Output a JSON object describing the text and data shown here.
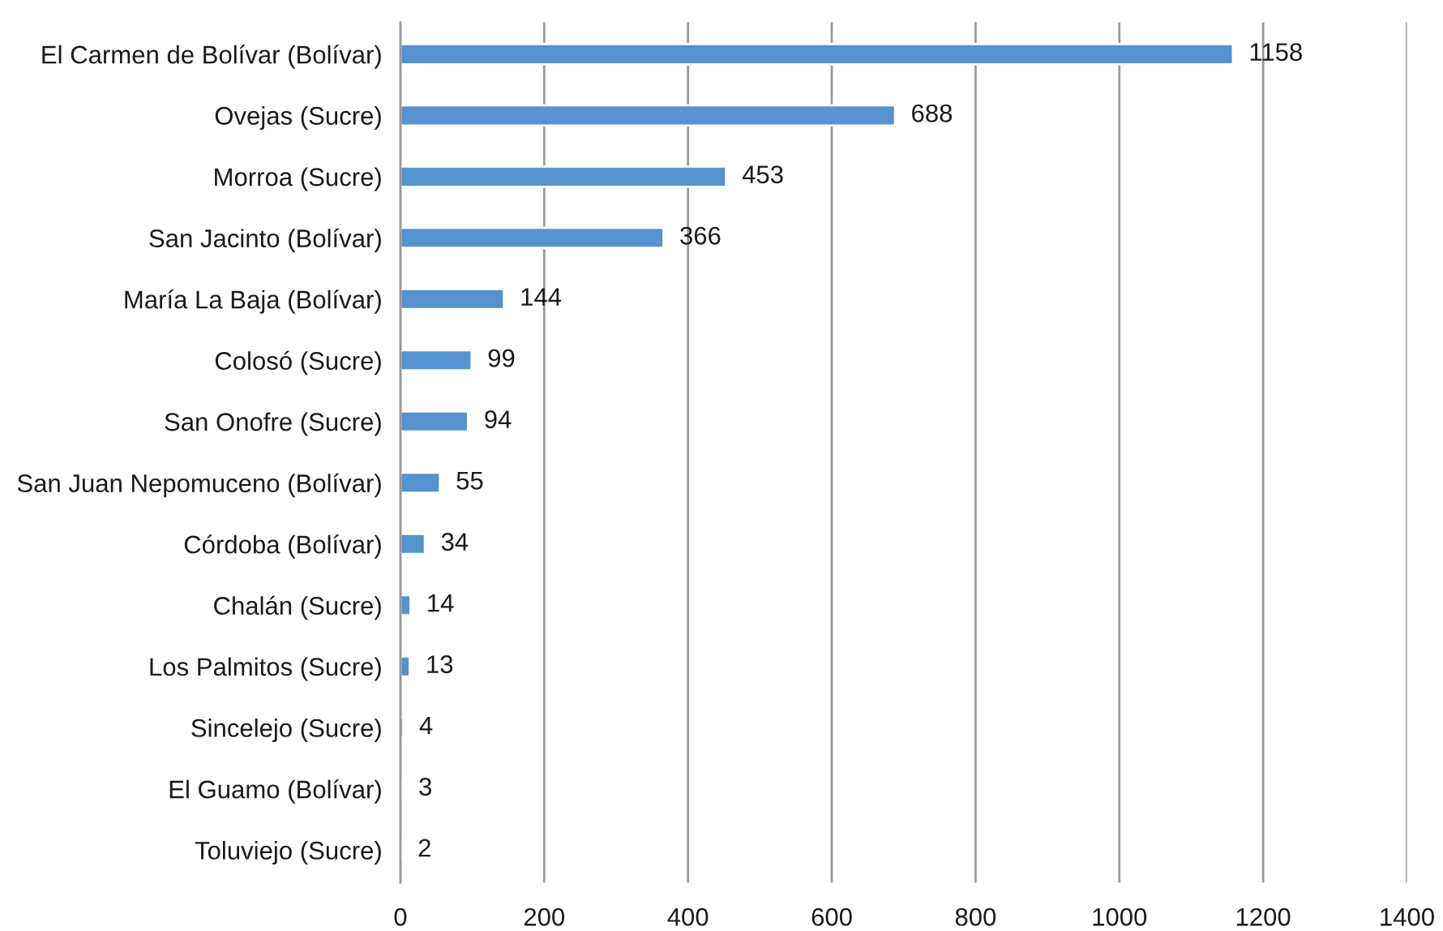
{
  "chart_data": {
    "type": "bar",
    "orientation": "horizontal",
    "categories": [
      "El Carmen de Bolívar (Bolívar)",
      "Ovejas (Sucre)",
      "Morroa (Sucre)",
      "San Jacinto (Bolívar)",
      "María La Baja (Bolívar)",
      "Colosó (Sucre)",
      "San Onofre (Sucre)",
      "San Juan Nepomuceno (Bolívar)",
      "Córdoba (Bolívar)",
      "Chalán (Sucre)",
      "Los Palmitos (Sucre)",
      "Sincelejo (Sucre)",
      "El Guamo (Bolívar)",
      "Toluviejo (Sucre)"
    ],
    "values": [
      1158,
      688,
      453,
      366,
      144,
      99,
      94,
      55,
      34,
      14,
      13,
      4,
      3,
      2
    ],
    "color": "#5592cf",
    "xlim": [
      0,
      1400
    ],
    "xticks": [
      0,
      200,
      400,
      600,
      800,
      1000,
      1200,
      1400
    ],
    "grid": "x",
    "data_labels": true
  }
}
